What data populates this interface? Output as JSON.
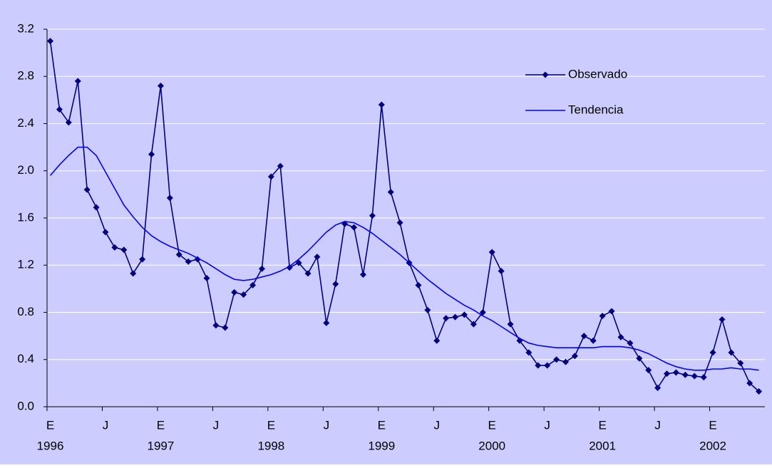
{
  "chart_data": {
    "type": "line",
    "categories": [
      "E",
      null,
      null,
      null,
      null,
      null,
      "J",
      null,
      null,
      null,
      null,
      null,
      "E",
      null,
      null,
      null,
      null,
      null,
      "J",
      null,
      null,
      null,
      null,
      null,
      "E",
      null,
      null,
      null,
      null,
      null,
      "J",
      null,
      null,
      null,
      null,
      null,
      "E",
      null,
      null,
      null,
      null,
      null,
      "J",
      null,
      null,
      null,
      null,
      null,
      "E",
      null,
      null,
      null,
      null,
      null,
      "J",
      null,
      null,
      null,
      null,
      null,
      "E",
      null,
      null,
      null,
      null,
      null,
      "J",
      null,
      null,
      null,
      null,
      null,
      "E",
      null,
      null,
      null,
      null,
      null
    ],
    "years": [
      "1996",
      "1997",
      "1998",
      "1999",
      "2000",
      "2001",
      "2002"
    ],
    "series": [
      {
        "name": "Observado",
        "color": "#000080",
        "markers": true,
        "values": [
          3.1,
          2.52,
          2.41,
          2.76,
          1.84,
          1.69,
          1.48,
          1.35,
          1.33,
          1.13,
          1.25,
          2.14,
          2.72,
          1.77,
          1.29,
          1.23,
          1.25,
          1.09,
          0.69,
          0.67,
          0.97,
          0.95,
          1.03,
          1.17,
          1.95,
          2.04,
          1.18,
          1.22,
          1.13,
          1.27,
          0.71,
          1.04,
          1.55,
          1.52,
          1.12,
          1.62,
          2.56,
          1.82,
          1.56,
          1.22,
          1.03,
          0.82,
          0.56,
          0.75,
          0.76,
          0.78,
          0.7,
          0.8,
          1.31,
          1.15,
          0.7,
          0.56,
          0.46,
          0.35,
          0.35,
          0.4,
          0.38,
          0.43,
          0.6,
          0.56,
          0.77,
          0.81,
          0.59,
          0.54,
          0.41,
          0.31,
          0.16,
          0.28,
          0.29,
          0.27,
          0.26,
          0.25,
          0.46,
          0.74,
          0.46,
          0.37,
          0.2,
          0.13
        ]
      },
      {
        "name": "Tendencia",
        "color": "#0000ff",
        "markers": false,
        "values": [
          1.96,
          2.05,
          2.13,
          2.2,
          2.2,
          2.13,
          1.99,
          1.85,
          1.71,
          1.61,
          1.52,
          1.45,
          1.4,
          1.36,
          1.33,
          1.3,
          1.26,
          1.22,
          1.17,
          1.12,
          1.08,
          1.07,
          1.08,
          1.1,
          1.12,
          1.15,
          1.19,
          1.25,
          1.32,
          1.4,
          1.48,
          1.54,
          1.57,
          1.56,
          1.52,
          1.47,
          1.41,
          1.35,
          1.29,
          1.22,
          1.15,
          1.08,
          1.02,
          0.96,
          0.91,
          0.86,
          0.82,
          0.77,
          0.73,
          0.68,
          0.63,
          0.58,
          0.54,
          0.52,
          0.51,
          0.5,
          0.5,
          0.5,
          0.5,
          0.5,
          0.51,
          0.51,
          0.51,
          0.5,
          0.48,
          0.45,
          0.41,
          0.37,
          0.34,
          0.32,
          0.31,
          0.31,
          0.32,
          0.32,
          0.33,
          0.32,
          0.32,
          0.31
        ]
      }
    ],
    "ylim": [
      0,
      3.2
    ],
    "yticks": [
      {
        "value": 0,
        "label": "0.0"
      },
      0.4,
      0.8,
      1.2,
      1.6,
      {
        "value": 2,
        "label": "2.0"
      },
      2.4,
      2.8,
      3.2
    ],
    "grid": true,
    "legend": "upper right"
  }
}
